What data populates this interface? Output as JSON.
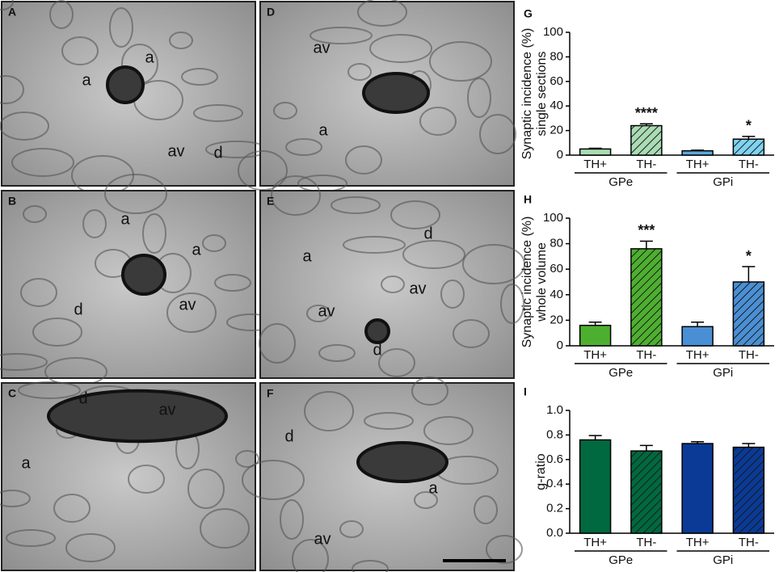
{
  "panels": [
    {
      "letter": "A",
      "labels": [
        "a",
        "a",
        "av",
        "d"
      ]
    },
    {
      "letter": "B",
      "labels": [
        "a",
        "a",
        "av",
        "d"
      ]
    },
    {
      "letter": "C",
      "labels": [
        "d",
        "av",
        "a"
      ]
    },
    {
      "letter": "D",
      "labels": [
        "av",
        "a"
      ]
    },
    {
      "letter": "E",
      "labels": [
        "a",
        "d",
        "av",
        "av",
        "d"
      ]
    },
    {
      "letter": "F",
      "labels": [
        "d",
        "a",
        "av"
      ]
    }
  ],
  "chart_data": [
    {
      "type": "bar",
      "panel": "G",
      "ylabel": [
        "Synaptic incidence (%)",
        "single sections"
      ],
      "categories": [
        "TH+",
        "TH-",
        "TH+",
        "TH-"
      ],
      "groups": [
        "GPe",
        "GPi"
      ],
      "values": [
        5,
        24,
        3.5,
        13
      ],
      "errors": [
        0.6,
        1.5,
        0.5,
        2.2
      ],
      "significance": [
        null,
        "****",
        null,
        "*"
      ],
      "colors": [
        "#a9dcb5",
        "#a9dcb5",
        "#5aa9dc",
        "#7fd3f0"
      ],
      "hatch": [
        false,
        true,
        false,
        true
      ],
      "ylim": [
        0,
        100
      ],
      "yticks": [
        0,
        20,
        40,
        60,
        80,
        100
      ]
    },
    {
      "type": "bar",
      "panel": "H",
      "ylabel": [
        "Synaptic incidence (%)",
        "whole volume"
      ],
      "categories": [
        "TH+",
        "TH-",
        "TH+",
        "TH-"
      ],
      "groups": [
        "GPe",
        "GPi"
      ],
      "values": [
        16,
        76,
        15,
        50
      ],
      "errors": [
        2.5,
        6,
        3.5,
        12
      ],
      "significance": [
        null,
        "***",
        null,
        "*"
      ],
      "colors": [
        "#4daf2f",
        "#4daf2f",
        "#4a8fd4",
        "#4a8fd4"
      ],
      "hatch": [
        false,
        true,
        false,
        true
      ],
      "ylim": [
        0,
        100
      ],
      "yticks": [
        0,
        20,
        40,
        60,
        80,
        100
      ]
    },
    {
      "type": "bar",
      "panel": "I",
      "ylabel": [
        "g-ratio"
      ],
      "categories": [
        "TH+",
        "TH-",
        "TH+",
        "TH-"
      ],
      "groups": [
        "GPe",
        "GPi"
      ],
      "values": [
        0.76,
        0.67,
        0.73,
        0.7
      ],
      "errors": [
        0.035,
        0.045,
        0.015,
        0.03
      ],
      "significance": [
        null,
        null,
        null,
        null
      ],
      "colors": [
        "#00693f",
        "#00693f",
        "#0a3a96",
        "#0a3a96"
      ],
      "hatch": [
        false,
        true,
        false,
        true
      ],
      "ylim": [
        0,
        1.0
      ],
      "yticks": [
        {
          "value": 0,
          "label": "0.0"
        },
        {
          "value": 0.2,
          "label": "0.2"
        },
        {
          "value": 0.4,
          "label": "0.4"
        },
        {
          "value": 0.6,
          "label": "0.6"
        },
        {
          "value": 0.8,
          "label": "0.8"
        },
        {
          "value": 1.0,
          "label": "1.0"
        }
      ]
    }
  ]
}
